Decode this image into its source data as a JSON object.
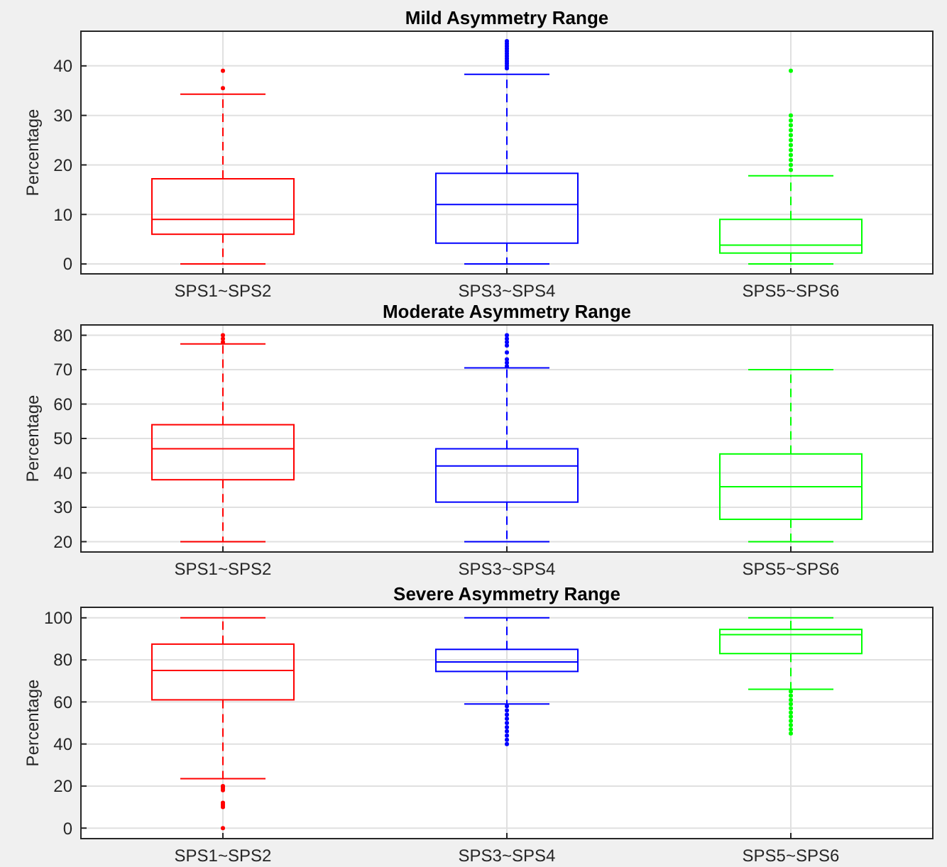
{
  "chart_data": [
    {
      "type": "box",
      "title": "Mild Asymmetry Range",
      "ylabel": "Percentage",
      "categories": [
        "SPS1~SPS2",
        "SPS3~SPS4",
        "SPS5~SPS6"
      ],
      "colors": [
        "#ff0000",
        "#0000ff",
        "#00ff00"
      ],
      "ylim": [
        -2,
        47
      ],
      "yticks": [
        0,
        10,
        20,
        30,
        40
      ],
      "grid": true,
      "boxes": [
        {
          "low": 0,
          "q1": 6,
          "median": 9,
          "q3": 17.2,
          "high": 34.3,
          "outliers": [
            35.5,
            39
          ]
        },
        {
          "low": 0,
          "q1": 4.2,
          "median": 12,
          "q3": 18.3,
          "high": 38.3,
          "outliers": [
            39.5,
            40,
            40.5,
            41,
            41.5,
            42,
            42.5,
            43,
            43.5,
            44,
            44.5,
            45
          ]
        },
        {
          "low": 0,
          "q1": 2.2,
          "median": 3.8,
          "q3": 9,
          "high": 17.8,
          "outliers": [
            19,
            20,
            21,
            22,
            23,
            24,
            25,
            26,
            27,
            28,
            29,
            30,
            39
          ]
        }
      ]
    },
    {
      "type": "box",
      "title": "Moderate Asymmetry Range",
      "ylabel": "Percentage",
      "categories": [
        "SPS1~SPS2",
        "SPS3~SPS4",
        "SPS5~SPS6"
      ],
      "colors": [
        "#ff0000",
        "#0000ff",
        "#00ff00"
      ],
      "ylim": [
        17,
        83
      ],
      "yticks": [
        20,
        30,
        40,
        50,
        60,
        70,
        80
      ],
      "grid": true,
      "boxes": [
        {
          "low": 20,
          "q1": 38,
          "median": 47,
          "q3": 54,
          "high": 77.5,
          "outliers": [
            78,
            79,
            80
          ]
        },
        {
          "low": 20,
          "q1": 31.5,
          "median": 42,
          "q3": 47,
          "high": 70.5,
          "outliers": [
            71,
            72,
            73,
            75,
            77,
            78,
            79,
            80
          ]
        },
        {
          "low": 20,
          "q1": 26.5,
          "median": 36,
          "q3": 45.5,
          "high": 70
        }
      ]
    },
    {
      "type": "box",
      "title": "Severe Asymmetry Range",
      "ylabel": "Percentage",
      "categories": [
        "SPS1~SPS2",
        "SPS3~SPS4",
        "SPS5~SPS6"
      ],
      "colors": [
        "#ff0000",
        "#0000ff",
        "#00ff00"
      ],
      "ylim": [
        -5,
        105
      ],
      "yticks": [
        0,
        20,
        40,
        60,
        80,
        100
      ],
      "grid": true,
      "boxes": [
        {
          "low": 23.5,
          "q1": 61,
          "median": 75,
          "q3": 87.5,
          "high": 100,
          "outliers": [
            0,
            10,
            11,
            12,
            18,
            19,
            20
          ]
        },
        {
          "low": 59,
          "q1": 74.5,
          "median": 79,
          "q3": 85,
          "high": 100,
          "outliers": [
            40,
            42,
            44,
            46,
            48,
            50,
            52,
            54,
            56,
            58
          ]
        },
        {
          "low": 66,
          "q1": 83,
          "median": 92,
          "q3": 94.5,
          "high": 100,
          "outliers": [
            45,
            47,
            49,
            51,
            53,
            55,
            57,
            59,
            61,
            63,
            65
          ]
        }
      ]
    }
  ]
}
